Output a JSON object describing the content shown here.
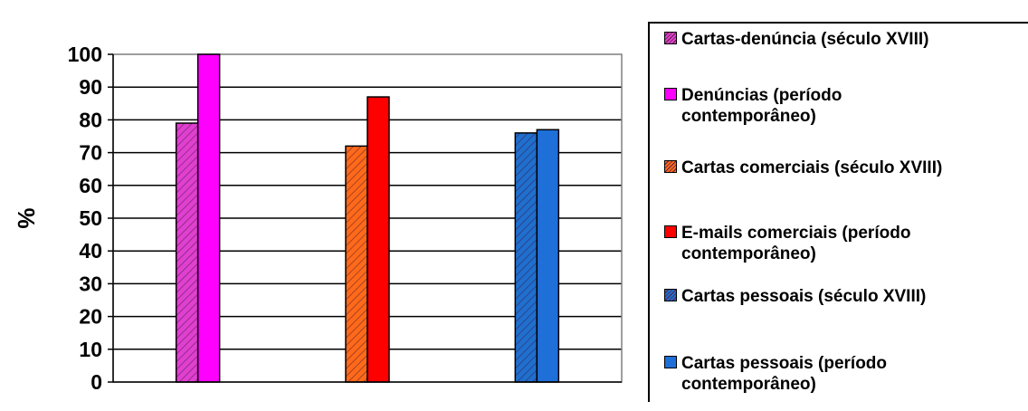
{
  "chart_data": {
    "type": "bar",
    "ylabel": "%",
    "xlabel": "",
    "ylim": [
      0,
      100
    ],
    "yticks": [
      0,
      10,
      20,
      30,
      40,
      50,
      60,
      70,
      80,
      90,
      100
    ],
    "grid": true,
    "legend_position": "right",
    "groups": [
      {
        "bars": [
          {
            "series": "Cartas-denúncia (século XVIII)",
            "value": 79
          },
          {
            "series": "Denúncias (período contemporâneo)",
            "value": 100
          }
        ]
      },
      {
        "bars": [
          {
            "series": "Cartas comerciais (século XVIII)",
            "value": 72
          },
          {
            "series": "E-mails comerciais (período contemporâneo)",
            "value": 87
          }
        ]
      },
      {
        "bars": [
          {
            "series": "Cartas pessoais (século XVIII)",
            "value": 76
          },
          {
            "series": "Cartas pessoais (período contemporâneo)",
            "value": 77
          }
        ]
      }
    ],
    "series": [
      {
        "name": "Cartas-denúncia (século XVIII)",
        "color": "#e040d0",
        "hatched": true
      },
      {
        "name": "Denúncias (período contemporâneo)",
        "color": "#ff00ff",
        "hatched": false
      },
      {
        "name": "Cartas comerciais (século XVIII)",
        "color": "#ff6a1a",
        "hatched": true
      },
      {
        "name": "E-mails comerciais (período contemporâneo)",
        "color": "#ff0000",
        "hatched": false
      },
      {
        "name": "Cartas pessoais (século XVIII)",
        "color": "#1f6fcf",
        "hatched": true
      },
      {
        "name": "Cartas pessoais (período contemporâneo)",
        "color": "#1e6fd8",
        "hatched": false
      }
    ]
  },
  "legend": {
    "items": [
      {
        "lines": [
          "Cartas-denúncia (século XVIII)"
        ]
      },
      {
        "lines": [
          "Denúncias (período",
          "contemporâneo)"
        ]
      },
      {
        "lines": [
          "Cartas comerciais (século XVIII)"
        ]
      },
      {
        "lines": [
          "E-mails comerciais (período",
          "contemporâneo)"
        ]
      },
      {
        "lines": [
          "Cartas pessoais (século XVIII)"
        ]
      },
      {
        "lines": [
          "Cartas pessoais (período",
          "contemporâneo)"
        ]
      }
    ]
  }
}
